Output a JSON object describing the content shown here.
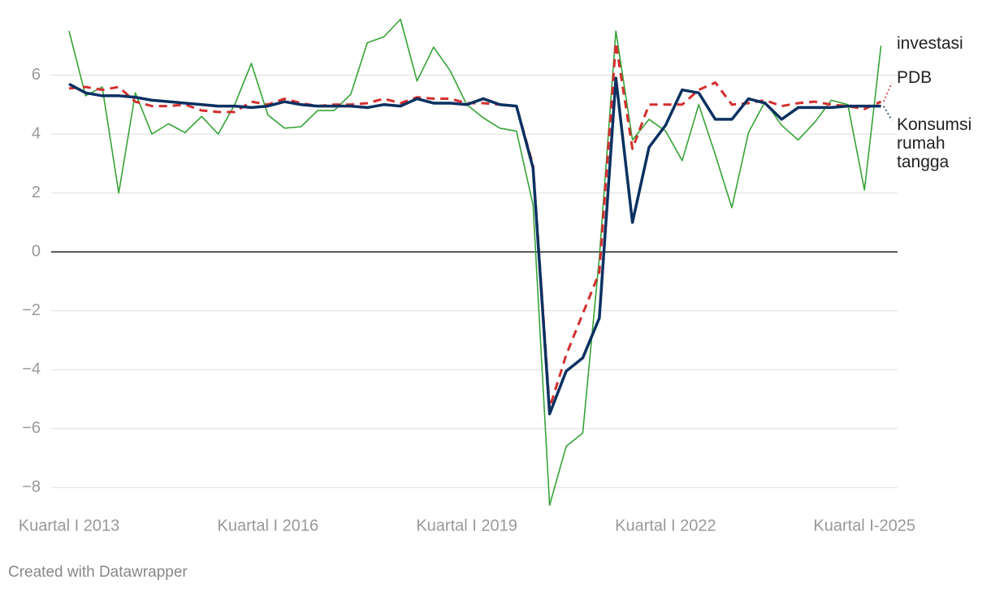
{
  "chart_data": {
    "type": "line",
    "categories": [
      "Kuartal I 2013",
      null,
      null,
      null,
      null,
      null,
      null,
      null,
      null,
      null,
      null,
      null,
      "Kuartal I 2016",
      null,
      null,
      null,
      null,
      null,
      null,
      null,
      null,
      null,
      null,
      null,
      "Kuartal I 2019",
      null,
      null,
      null,
      null,
      null,
      null,
      null,
      null,
      null,
      null,
      null,
      "Kuartal I 2022",
      null,
      null,
      null,
      null,
      null,
      null,
      null,
      null,
      null,
      null,
      null,
      "Kuartal I-2025",
      null
    ],
    "series": [
      {
        "name": "investasi",
        "color": "#36a336",
        "values": [
          7.5,
          5.3,
          5.6,
          2.0,
          5.4,
          4.0,
          4.35,
          4.05,
          4.6,
          4.0,
          5.0,
          6.4,
          4.65,
          4.2,
          4.25,
          4.8,
          4.8,
          5.35,
          7.1,
          7.3,
          7.9,
          5.8,
          6.95,
          6.15,
          5.0,
          4.55,
          4.2,
          4.1,
          1.6,
          -8.6,
          -6.6,
          -6.15,
          -0.2,
          7.5,
          3.8,
          4.5,
          4.1,
          3.1,
          5.0,
          3.3,
          1.5,
          4.05,
          5.1,
          4.3,
          3.8,
          4.4,
          5.15,
          5.0,
          2.1,
          7.0
        ]
      },
      {
        "name": "PDB",
        "color": "#d42e2e",
        "values": [
          5.55,
          5.6,
          5.5,
          5.6,
          5.1,
          4.95,
          4.95,
          5.0,
          4.8,
          4.75,
          4.75,
          5.1,
          5.0,
          5.2,
          5.05,
          4.95,
          5.0,
          5.0,
          5.05,
          5.2,
          5.05,
          5.25,
          5.2,
          5.2,
          5.05,
          5.05,
          5.0,
          4.95,
          2.95,
          -5.3,
          -3.5,
          -2.1,
          -0.7,
          7.1,
          3.5,
          5.0,
          5.0,
          5.0,
          5.5,
          5.75,
          5.0,
          5.05,
          5.15,
          4.95,
          5.05,
          5.1,
          5.0,
          4.95,
          4.85,
          5.1
        ]
      },
      {
        "name": "Konsumsi rumah tangga",
        "color": "#0a3161",
        "values": [
          5.7,
          5.4,
          5.3,
          5.3,
          5.25,
          5.15,
          5.1,
          5.05,
          5.0,
          4.95,
          4.95,
          4.9,
          4.95,
          5.1,
          5.0,
          4.95,
          4.95,
          4.95,
          4.9,
          5.0,
          4.95,
          5.2,
          5.05,
          5.05,
          5.0,
          5.2,
          5.0,
          4.95,
          2.85,
          -5.5,
          -4.05,
          -3.6,
          -2.25,
          5.9,
          1.0,
          3.55,
          4.3,
          5.5,
          5.4,
          4.5,
          4.5,
          5.2,
          5.05,
          4.5,
          4.9,
          4.9,
          4.9,
          4.95,
          4.95,
          4.95
        ]
      }
    ],
    "ylim": [
      -8.6,
      8.0
    ],
    "yticks": [
      {
        "value": -8,
        "label": "−8"
      },
      {
        "value": -6,
        "label": "−6"
      },
      {
        "value": -4,
        "label": "−4"
      },
      {
        "value": -2,
        "label": "−2"
      },
      0,
      2,
      4,
      6
    ],
    "grid": true,
    "credit": "Created with Datawrapper"
  }
}
